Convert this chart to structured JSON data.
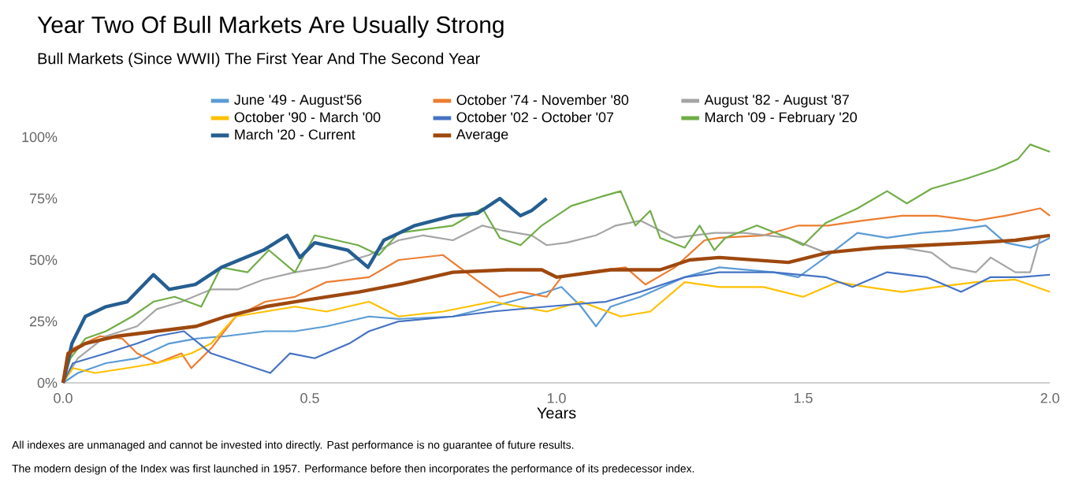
{
  "chart_data": {
    "type": "line",
    "title": "Year Two Of Bull Markets Are Usually Strong",
    "subtitle": "Bull Markets (Since WWII) The First Year And The Second Year",
    "xlabel": "Years",
    "xlim": [
      0,
      2
    ],
    "ylim": [
      0,
      100
    ],
    "xticks": [
      {
        "value": 0,
        "label": "0.0"
      },
      {
        "value": 0.5,
        "label": "0.5"
      },
      {
        "value": 1,
        "label": "1.0"
      },
      {
        "value": 1.5,
        "label": "1.5"
      },
      {
        "value": 2,
        "label": "2.0"
      }
    ],
    "yticks": [
      {
        "value": 0,
        "label": "0%"
      },
      {
        "value": 25,
        "label": "25%"
      },
      {
        "value": 50,
        "label": "50%"
      },
      {
        "value": 75,
        "label": "75%"
      },
      {
        "value": 100,
        "label": "100%"
      }
    ],
    "legend": "top",
    "grid": false,
    "marker": "none",
    "line_style": "solid",
    "series": [
      {
        "name": "June '49 - August'56",
        "color": "#5b9bd5",
        "x": [
          0,
          0.03,
          0.087,
          0.15,
          0.215,
          0.27,
          0.33,
          0.41,
          0.47,
          0.534,
          0.62,
          0.68,
          0.79,
          0.87,
          0.98,
          1.01,
          1.05,
          1.08,
          1.11,
          1.17,
          1.26,
          1.33,
          1.44,
          1.49,
          1.545,
          1.61,
          1.67,
          1.74,
          1.8,
          1.87,
          1.91,
          1.96,
          2.0
        ],
        "values": [
          0,
          4,
          8,
          10,
          16,
          18,
          19,
          21,
          21,
          23,
          27,
          26,
          27,
          31,
          37,
          39,
          31,
          23,
          31,
          35,
          43,
          47,
          45,
          43,
          51,
          61,
          59,
          61,
          62,
          64,
          57,
          55,
          59
        ]
      },
      {
        "name": "October '74 - November '80",
        "color": "#ed7d31",
        "x": [
          0,
          0.02,
          0.075,
          0.12,
          0.15,
          0.19,
          0.24,
          0.26,
          0.3,
          0.35,
          0.41,
          0.47,
          0.534,
          0.62,
          0.68,
          0.77,
          0.83,
          0.885,
          0.927,
          0.98,
          1.01,
          1.06,
          1.14,
          1.18,
          1.24,
          1.3,
          1.33,
          1.42,
          1.49,
          1.55,
          1.62,
          1.7,
          1.77,
          1.85,
          1.91,
          1.98,
          2.0
        ],
        "values": [
          0,
          14,
          19,
          18,
          12,
          8,
          12,
          6,
          14,
          27,
          33,
          35,
          41,
          43,
          50,
          52,
          43,
          35,
          37,
          35,
          43,
          45,
          47,
          40,
          47,
          58,
          59,
          60,
          64,
          64,
          66,
          68,
          68,
          66,
          68,
          71,
          68
        ]
      },
      {
        "name": "August '82 - August '87",
        "color": "#a5a5a5",
        "x": [
          0,
          0.03,
          0.087,
          0.15,
          0.19,
          0.24,
          0.3,
          0.354,
          0.406,
          0.47,
          0.534,
          0.62,
          0.68,
          0.73,
          0.79,
          0.85,
          0.89,
          0.95,
          0.98,
          1.02,
          1.08,
          1.12,
          1.17,
          1.24,
          1.32,
          1.38,
          1.47,
          1.545,
          1.61,
          1.7,
          1.76,
          1.8,
          1.85,
          1.88,
          1.93,
          1.96,
          1.98
        ],
        "values": [
          0,
          10,
          19,
          23,
          30,
          33,
          38,
          38,
          42,
          45,
          47,
          52,
          58,
          60,
          58,
          64,
          62,
          60,
          56,
          57,
          60,
          64,
          66,
          59,
          61,
          61,
          59,
          53,
          54,
          55,
          53,
          47,
          45,
          51,
          45,
          45,
          59
        ]
      },
      {
        "name": "October '90 - March '00",
        "color": "#ffc000",
        "x": [
          0,
          0.02,
          0.065,
          0.13,
          0.19,
          0.26,
          0.3,
          0.35,
          0.41,
          0.47,
          0.534,
          0.62,
          0.68,
          0.77,
          0.87,
          0.98,
          1.05,
          1.13,
          1.19,
          1.26,
          1.33,
          1.42,
          1.5,
          1.57,
          1.63,
          1.7,
          1.77,
          1.85,
          1.93,
          2.0
        ],
        "values": [
          0,
          6,
          4,
          6,
          8,
          12,
          16,
          27,
          29,
          31,
          29,
          33,
          27,
          29,
          33,
          29,
          33,
          27,
          29,
          41,
          39,
          39,
          35,
          41,
          39,
          37,
          39,
          41,
          42,
          37
        ]
      },
      {
        "name": "October '02 - October '07",
        "color": "#4472c4",
        "x": [
          0,
          0.02,
          0.087,
          0.15,
          0.19,
          0.245,
          0.3,
          0.36,
          0.42,
          0.46,
          0.51,
          0.58,
          0.62,
          0.68,
          0.79,
          0.87,
          0.98,
          1.1,
          1.17,
          1.26,
          1.33,
          1.44,
          1.545,
          1.6,
          1.67,
          1.75,
          1.82,
          1.88,
          1.94,
          2.0
        ],
        "values": [
          0,
          8,
          12,
          16,
          19,
          21,
          12,
          8,
          4,
          12,
          10,
          16,
          21,
          25,
          27,
          29,
          31,
          33,
          37,
          43,
          45,
          45,
          43,
          39,
          45,
          43,
          37,
          43,
          43,
          44
        ]
      },
      {
        "name": "March '09 - February '20",
        "color": "#70ad47",
        "x": [
          0,
          0.015,
          0.045,
          0.087,
          0.14,
          0.183,
          0.226,
          0.28,
          0.32,
          0.374,
          0.417,
          0.47,
          0.51,
          0.598,
          0.64,
          0.68,
          0.79,
          0.85,
          0.885,
          0.927,
          0.97,
          1.03,
          1.095,
          1.13,
          1.16,
          1.19,
          1.21,
          1.26,
          1.29,
          1.32,
          1.342,
          1.406,
          1.47,
          1.5,
          1.545,
          1.61,
          1.67,
          1.71,
          1.76,
          1.83,
          1.89,
          1.935,
          1.96,
          2.0
        ],
        "values": [
          0,
          10,
          18,
          21,
          27,
          33,
          35,
          31,
          47,
          45,
          54,
          45,
          60,
          56,
          52,
          61,
          64,
          71,
          59,
          56,
          64,
          72,
          76,
          78,
          64,
          70,
          59,
          55,
          64,
          54,
          59,
          64,
          59,
          56,
          65,
          71,
          78,
          73,
          79,
          83,
          87,
          91,
          97,
          94
        ]
      },
      {
        "name": "March '20 - Current",
        "color": "#255e91",
        "x": [
          0,
          0.018,
          0.045,
          0.087,
          0.13,
          0.183,
          0.215,
          0.268,
          0.321,
          0.406,
          0.454,
          0.48,
          0.51,
          0.577,
          0.618,
          0.65,
          0.713,
          0.79,
          0.84,
          0.885,
          0.927,
          0.949,
          0.98
        ],
        "values": [
          0,
          16,
          27,
          31,
          33,
          44,
          38,
          40,
          47,
          54,
          60,
          51,
          57,
          54,
          47,
          58,
          64,
          68,
          69,
          75,
          68,
          70,
          75
        ]
      },
      {
        "name": "Average",
        "color": "#9e480e",
        "x": [
          0,
          0.01,
          0.045,
          0.11,
          0.19,
          0.27,
          0.33,
          0.41,
          0.47,
          0.534,
          0.6,
          0.68,
          0.79,
          0.9,
          0.97,
          1.0,
          1.11,
          1.21,
          1.27,
          1.33,
          1.47,
          1.55,
          1.65,
          1.75,
          1.85,
          1.93,
          2.0
        ],
        "values": [
          0,
          12,
          16,
          19,
          21,
          23,
          27,
          31,
          33,
          35,
          37,
          40,
          45,
          46,
          46,
          43,
          46,
          46,
          50,
          51,
          49,
          53,
          55,
          56,
          57,
          58,
          60
        ]
      }
    ],
    "annotations": [
      "All indexes are unmanaged and cannot be invested into directly. Past performance is no guarantee of future results.",
      "The modern design of the Index was first launched in 1957. Performance before then incorporates the performance of its predecessor index."
    ]
  }
}
